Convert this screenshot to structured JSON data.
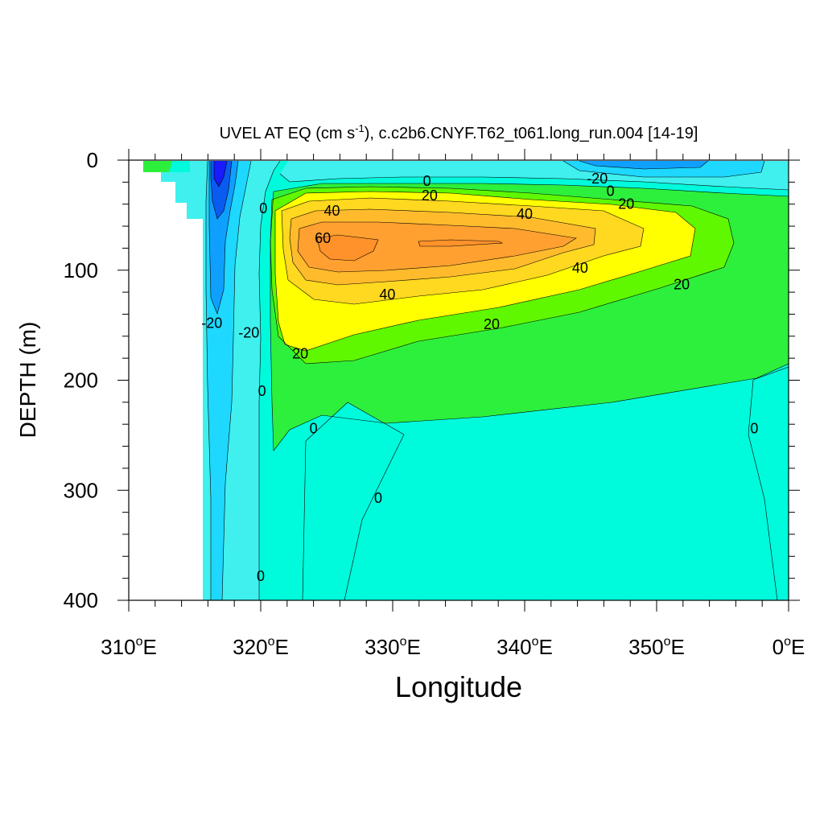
{
  "chart_data": {
    "type": "contour",
    "title": "UVEL AT EQ (cm s-1), c.c2b6.CNYF.T62_t061.long_run.004 [14-19]",
    "title_parts": {
      "main": "UVEL AT EQ (cm s",
      "superscript": "-1",
      "rest": "), c.c2b6.CNYF.T62_t061.long_run.004 [14-19]"
    },
    "xlabel": "Longitude",
    "ylabel": "DEPTH (m)",
    "xlim": [
      310,
      360
    ],
    "ylim": [
      0,
      400
    ],
    "y_inverted": true,
    "x_ticks": [
      {
        "value": 310,
        "num": "310",
        "deg": "o",
        "dir": "E"
      },
      {
        "value": 320,
        "num": "320",
        "deg": "o",
        "dir": "E"
      },
      {
        "value": 330,
        "num": "330",
        "deg": "o",
        "dir": "E"
      },
      {
        "value": 340,
        "num": "340",
        "deg": "o",
        "dir": "E"
      },
      {
        "value": 350,
        "num": "350",
        "deg": "o",
        "dir": "E"
      },
      {
        "value": 360,
        "num": "0",
        "deg": "o",
        "dir": "E"
      }
    ],
    "y_ticks": [
      {
        "value": 0,
        "label": "0"
      },
      {
        "value": 100,
        "label": "100"
      },
      {
        "value": 200,
        "label": "200"
      },
      {
        "value": 300,
        "label": "300"
      },
      {
        "value": 400,
        "label": "400"
      }
    ],
    "contour_interval": 10,
    "color_levels": [
      {
        "range": [
          -50,
          -40
        ],
        "color": "#1a1aff"
      },
      {
        "range": [
          -40,
          -30
        ],
        "color": "#0a5cf0"
      },
      {
        "range": [
          -30,
          -20
        ],
        "color": "#0fa0ff"
      },
      {
        "range": [
          -20,
          -10
        ],
        "color": "#1ed8ff"
      },
      {
        "range": [
          -10,
          0
        ],
        "color": "#3ff0ee"
      },
      {
        "range": [
          0,
          10
        ],
        "color": "#00fadc"
      },
      {
        "range": [
          10,
          20
        ],
        "color": "#2df03c"
      },
      {
        "range": [
          20,
          30
        ],
        "color": "#5ff800"
      },
      {
        "range": [
          30,
          40
        ],
        "color": "#ffff00"
      },
      {
        "range": [
          40,
          50
        ],
        "color": "#ffd820"
      },
      {
        "range": [
          50,
          60
        ],
        "color": "#ffbb2c"
      },
      {
        "range": [
          60,
          70
        ],
        "color": "#ffa030"
      },
      {
        "range": [
          70,
          80
        ],
        "color": "#ff922a"
      }
    ],
    "contour_labels": [
      {
        "text": "0",
        "lon": 332.6,
        "depth": 19
      },
      {
        "text": "20",
        "lon": 332.8,
        "depth": 32
      },
      {
        "text": "-20",
        "lon": 345.5,
        "depth": 17
      },
      {
        "text": "0",
        "lon": 346.5,
        "depth": 28
      },
      {
        "text": "20",
        "lon": 347.7,
        "depth": 40
      },
      {
        "text": "40",
        "lon": 325.4,
        "depth": 46
      },
      {
        "text": "40",
        "lon": 340.0,
        "depth": 49
      },
      {
        "text": "60",
        "lon": 324.7,
        "depth": 71
      },
      {
        "text": "40",
        "lon": 344.2,
        "depth": 98
      },
      {
        "text": "20",
        "lon": 351.9,
        "depth": 113
      },
      {
        "text": "40",
        "lon": 329.6,
        "depth": 122
      },
      {
        "text": "20",
        "lon": 337.5,
        "depth": 149
      },
      {
        "text": "20",
        "lon": 323.0,
        "depth": 176
      },
      {
        "text": "0",
        "lon": 320.2,
        "depth": 44
      },
      {
        "text": "-20",
        "lon": 316.3,
        "depth": 148
      },
      {
        "text": "-20",
        "lon": 319.1,
        "depth": 157
      },
      {
        "text": "0",
        "lon": 320.1,
        "depth": 210
      },
      {
        "text": "0",
        "lon": 324.0,
        "depth": 244
      },
      {
        "text": "0",
        "lon": 328.9,
        "depth": 307
      },
      {
        "text": "0",
        "lon": 357.4,
        "depth": 244
      },
      {
        "text": "0",
        "lon": 320.0,
        "depth": 378
      }
    ]
  }
}
